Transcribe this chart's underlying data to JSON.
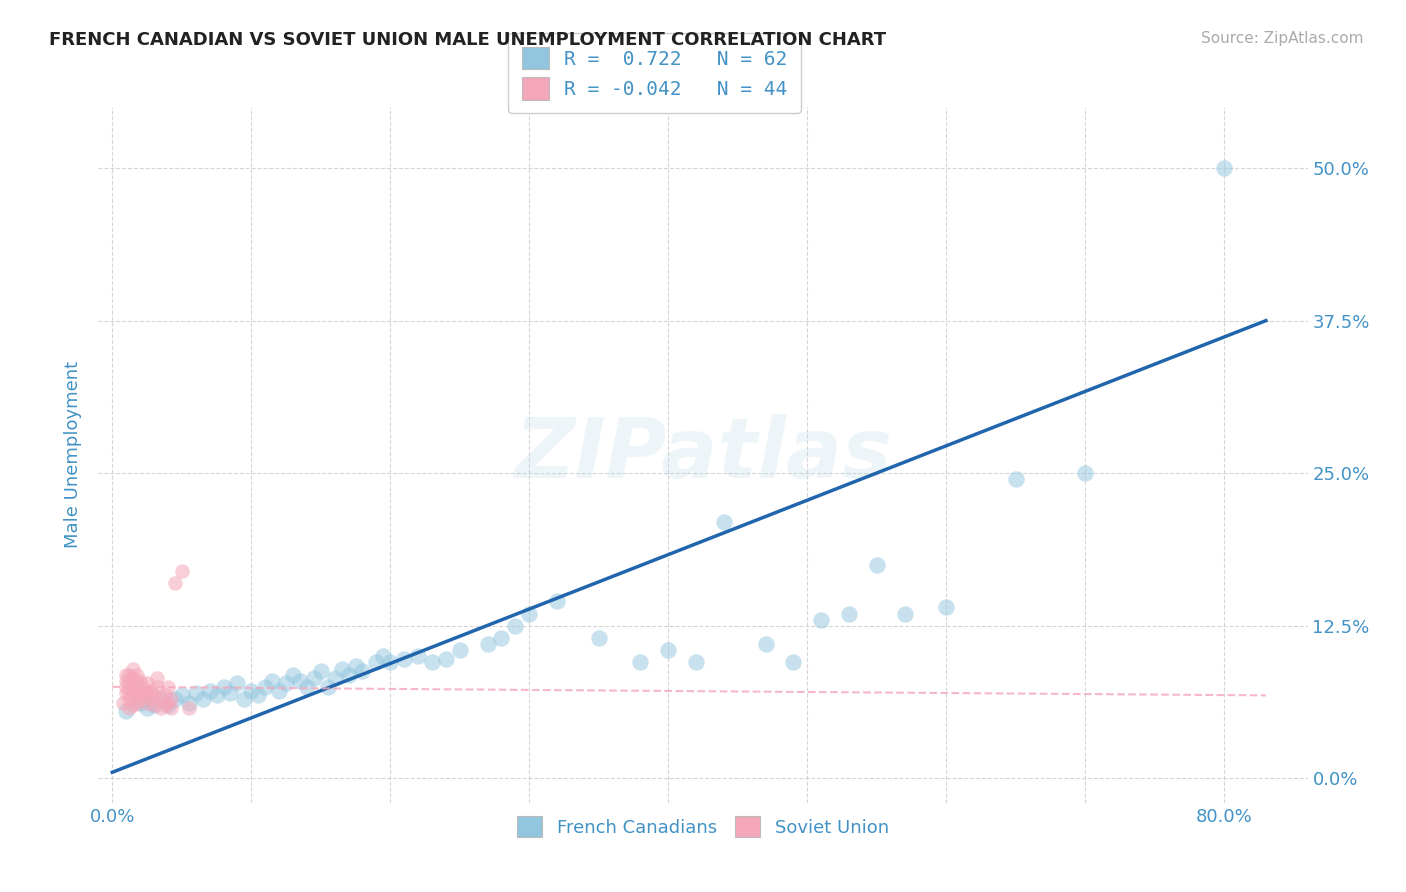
{
  "title": "FRENCH CANADIAN VS SOVIET UNION MALE UNEMPLOYMENT CORRELATION CHART",
  "source": "Source: ZipAtlas.com",
  "ylabel_label": "Male Unemployment",
  "ytick_labels": [
    "0.0%",
    "12.5%",
    "25.0%",
    "37.5%",
    "50.0%"
  ],
  "ytick_values": [
    0.0,
    0.125,
    0.25,
    0.375,
    0.5
  ],
  "xtick_vals": [
    0.0,
    0.1,
    0.2,
    0.3,
    0.4,
    0.5,
    0.6,
    0.7,
    0.8
  ],
  "xtick_labels_show": [
    "0.0%",
    "",
    "",
    "",
    "",
    "",
    "",
    "",
    "80.0%"
  ],
  "xlim": [
    -0.01,
    0.86
  ],
  "ylim": [
    -0.02,
    0.55
  ],
  "legend_line1": "R =  0.722   N = 62",
  "legend_line2": "R = -0.042   N = 44",
  "legend_label_blue": "French Canadians",
  "legend_label_pink": "Soviet Union",
  "blue_color": "#92c5de",
  "pink_color": "#f4a7b9",
  "blue_line_color": "#2166ac",
  "pink_line_color": "#f4a7b9",
  "blue_legend_color": "#92c5de",
  "pink_legend_color": "#f4a7b9",
  "text_color": "#4292c6",
  "title_color": "#222222",
  "source_color": "#aaaaaa",
  "watermark_text": "ZIPatlas",
  "blue_line_x0": 0.0,
  "blue_line_y0": 0.005,
  "blue_line_x1": 0.83,
  "blue_line_y1": 0.375,
  "pink_line_x0": 0.0,
  "pink_line_y0": 0.075,
  "pink_line_x1": 0.83,
  "pink_line_y1": 0.068,
  "blue_scatter_x": [
    0.01,
    0.02,
    0.025,
    0.03,
    0.035,
    0.04,
    0.045,
    0.05,
    0.055,
    0.06,
    0.065,
    0.07,
    0.075,
    0.08,
    0.085,
    0.09,
    0.095,
    0.1,
    0.105,
    0.11,
    0.115,
    0.12,
    0.125,
    0.13,
    0.135,
    0.14,
    0.145,
    0.15,
    0.155,
    0.16,
    0.165,
    0.17,
    0.175,
    0.18,
    0.19,
    0.195,
    0.2,
    0.21,
    0.22,
    0.23,
    0.24,
    0.25,
    0.27,
    0.28,
    0.29,
    0.3,
    0.32,
    0.35,
    0.38,
    0.4,
    0.42,
    0.44,
    0.47,
    0.49,
    0.51,
    0.53,
    0.55,
    0.57,
    0.6,
    0.65,
    0.7,
    0.8
  ],
  "blue_scatter_y": [
    0.055,
    0.062,
    0.058,
    0.06,
    0.065,
    0.06,
    0.065,
    0.068,
    0.062,
    0.07,
    0.065,
    0.072,
    0.068,
    0.075,
    0.07,
    0.078,
    0.065,
    0.072,
    0.068,
    0.075,
    0.08,
    0.072,
    0.078,
    0.085,
    0.08,
    0.075,
    0.082,
    0.088,
    0.075,
    0.082,
    0.09,
    0.085,
    0.092,
    0.088,
    0.095,
    0.1,
    0.095,
    0.098,
    0.1,
    0.095,
    0.098,
    0.105,
    0.11,
    0.115,
    0.125,
    0.135,
    0.145,
    0.115,
    0.095,
    0.105,
    0.095,
    0.21,
    0.11,
    0.095,
    0.13,
    0.135,
    0.175,
    0.135,
    0.14,
    0.245,
    0.25,
    0.5
  ],
  "pink_scatter_x": [
    0.008,
    0.01,
    0.01,
    0.01,
    0.01,
    0.012,
    0.012,
    0.012,
    0.012,
    0.012,
    0.015,
    0.015,
    0.015,
    0.015,
    0.015,
    0.018,
    0.018,
    0.018,
    0.018,
    0.02,
    0.02,
    0.02,
    0.022,
    0.022,
    0.025,
    0.025,
    0.025,
    0.028,
    0.028,
    0.03,
    0.03,
    0.032,
    0.032,
    0.035,
    0.035,
    0.038,
    0.038,
    0.04,
    0.04,
    0.042,
    0.042,
    0.045,
    0.05,
    0.055
  ],
  "pink_scatter_y": [
    0.062,
    0.07,
    0.075,
    0.08,
    0.085,
    0.058,
    0.065,
    0.072,
    0.078,
    0.085,
    0.06,
    0.068,
    0.075,
    0.082,
    0.09,
    0.062,
    0.07,
    0.078,
    0.085,
    0.065,
    0.072,
    0.08,
    0.068,
    0.075,
    0.062,
    0.07,
    0.078,
    0.065,
    0.072,
    0.06,
    0.068,
    0.075,
    0.082,
    0.058,
    0.065,
    0.06,
    0.068,
    0.062,
    0.075,
    0.058,
    0.065,
    0.16,
    0.17,
    0.058
  ]
}
